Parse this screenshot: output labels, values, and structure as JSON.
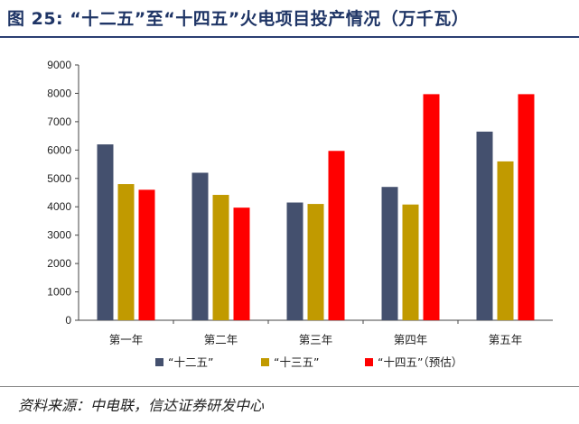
{
  "header": {
    "title": "图 25:  “十二五”至“十四五”火电项目投产情况（万千瓦）"
  },
  "footer": {
    "source": "资料来源：中电联，信达证券研发中心"
  },
  "chart_data": {
    "type": "bar",
    "title": "",
    "xlabel": "",
    "ylabel": "",
    "categories": [
      "第一年",
      "第二年",
      "第三年",
      "第四年",
      "第五年"
    ],
    "series": [
      {
        "name": "“十二五”",
        "color": "#44506e",
        "values": [
          6200,
          5200,
          4150,
          4700,
          6650
        ]
      },
      {
        "name": "“十三五”",
        "color": "#c19a00",
        "values": [
          4800,
          4420,
          4100,
          4080,
          5600
        ]
      },
      {
        "name": "“十四五”（预估）",
        "color": "#ff0000",
        "values": [
          4600,
          3970,
          5970,
          7970,
          7970
        ]
      }
    ],
    "ylim": [
      0,
      9000
    ],
    "yticks": [
      0,
      1000,
      2000,
      3000,
      4000,
      5000,
      6000,
      7000,
      8000,
      9000
    ],
    "grid": false,
    "legend": "bottom"
  }
}
